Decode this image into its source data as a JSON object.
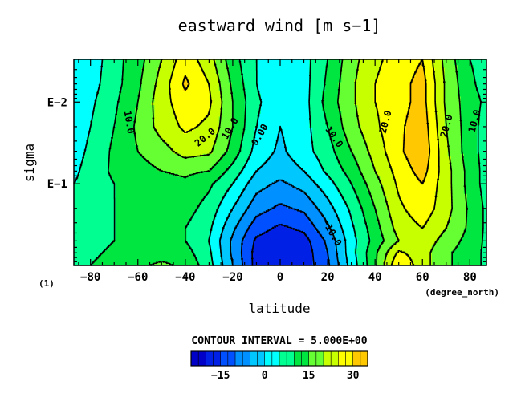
{
  "chart_data": {
    "type": "heatmap",
    "title": "eastward wind [m s−1]",
    "xlabel": "latitude",
    "ylabel": "sigma",
    "x_unit_label": "(degree_north)",
    "corner_label": "(1)",
    "xlim": [
      -87,
      87
    ],
    "x_ticks": [
      -80,
      -60,
      -40,
      -20,
      0,
      20,
      40,
      60,
      80
    ],
    "y_ticks": [
      {
        "label": "E−2",
        "value": 0.01
      },
      {
        "label": "E−1",
        "value": 0.1
      }
    ],
    "ylim": [
      1.0,
      0.003
    ],
    "y_scale": "log",
    "contour_interval_text": "CONTOUR INTERVAL = 5.000E+00",
    "contour_labels": [
      "10.0",
      "20.0",
      "10.0",
      "0.00",
      "10.0",
      "20.0",
      "20.0",
      "10.0",
      "−10.0"
    ],
    "colorbar": {
      "levels": [
        -25,
        -22.5,
        -20,
        -17.5,
        -15,
        -12.5,
        -10,
        -7.5,
        -5,
        -2.5,
        0,
        2.5,
        5,
        7.5,
        10,
        12.5,
        15,
        17.5,
        20,
        22.5,
        25,
        27.5,
        30,
        32.5,
        35
      ],
      "tick_labels": [
        "−15",
        "0",
        "15",
        "30"
      ],
      "tick_values": [
        -15,
        0,
        15,
        30
      ]
    },
    "colors": [
      "#0000c8",
      "#0020e6",
      "#0050ff",
      "#0090ff",
      "#00c8ff",
      "#00ffff",
      "#00ff90",
      "#00e640",
      "#66ff33",
      "#c8ff00",
      "#ffff00",
      "#ffc800",
      "#ff9000",
      "#ff5000",
      "#ff0000",
      "#e00080"
    ],
    "grid": {
      "lat": [
        -87,
        -80,
        -70,
        -60,
        -50,
        -40,
        -30,
        -20,
        -10,
        0,
        10,
        20,
        30,
        40,
        50,
        60,
        70,
        80,
        87
      ],
      "sigma": [
        0.003,
        0.006,
        0.01,
        0.02,
        0.04,
        0.07,
        0.1,
        0.2,
        0.35,
        0.5,
        0.7,
        1.0
      ],
      "u": [
        [
          0,
          2,
          8,
          13,
          20,
          28,
          22,
          12,
          5,
          0,
          3,
          10,
          18,
          24,
          27,
          30,
          18,
          10,
          8
        ],
        [
          0,
          3,
          8,
          14,
          22,
          31,
          25,
          14,
          5,
          0,
          3,
          11,
          19,
          25,
          28,
          32,
          19,
          11,
          8
        ],
        [
          1,
          4,
          9,
          15,
          23,
          28,
          26,
          15,
          6,
          1,
          3,
          12,
          19,
          25,
          28,
          32,
          19,
          12,
          9
        ],
        [
          2,
          5,
          10,
          16,
          22,
          26,
          24,
          15,
          5,
          0,
          3,
          10,
          18,
          24,
          29,
          33,
          20,
          12,
          8
        ],
        [
          3,
          6,
          11,
          15,
          18,
          22,
          21,
          13,
          3,
          -1,
          3,
          8,
          15,
          22,
          29,
          34,
          21,
          12,
          8
        ],
        [
          4,
          7,
          11,
          13,
          15,
          16,
          15,
          8,
          0,
          -3,
          0,
          6,
          12,
          20,
          27,
          32,
          22,
          13,
          8
        ],
        [
          5,
          7,
          10,
          12,
          13,
          14,
          11,
          5,
          -3,
          -6,
          -3,
          3,
          10,
          18,
          26,
          30,
          22,
          13,
          8
        ],
        [
          5,
          8,
          10,
          11,
          12,
          12,
          8,
          0,
          -8,
          -11,
          -9,
          -2,
          6,
          15,
          24,
          28,
          22,
          14,
          9
        ],
        [
          6,
          8,
          10,
          11,
          11,
          10,
          6,
          -4,
          -13,
          -16,
          -14,
          -6,
          4,
          13,
          22,
          25,
          20,
          14,
          9
        ],
        [
          6,
          8,
          10,
          11,
          11,
          10,
          5,
          -6,
          -16,
          -18,
          -17,
          -9,
          3,
          12,
          20,
          23,
          18,
          13,
          9
        ],
        [
          7,
          9,
          11,
          12,
          13,
          12,
          6,
          -6,
          -17,
          -19,
          -18,
          -10,
          3,
          14,
          26,
          22,
          16,
          12,
          9
        ],
        [
          8,
          10,
          12,
          14,
          16,
          14,
          7,
          -5,
          -17,
          -20,
          -18,
          -11,
          2,
          14,
          30,
          22,
          16,
          12,
          9
        ]
      ]
    }
  }
}
